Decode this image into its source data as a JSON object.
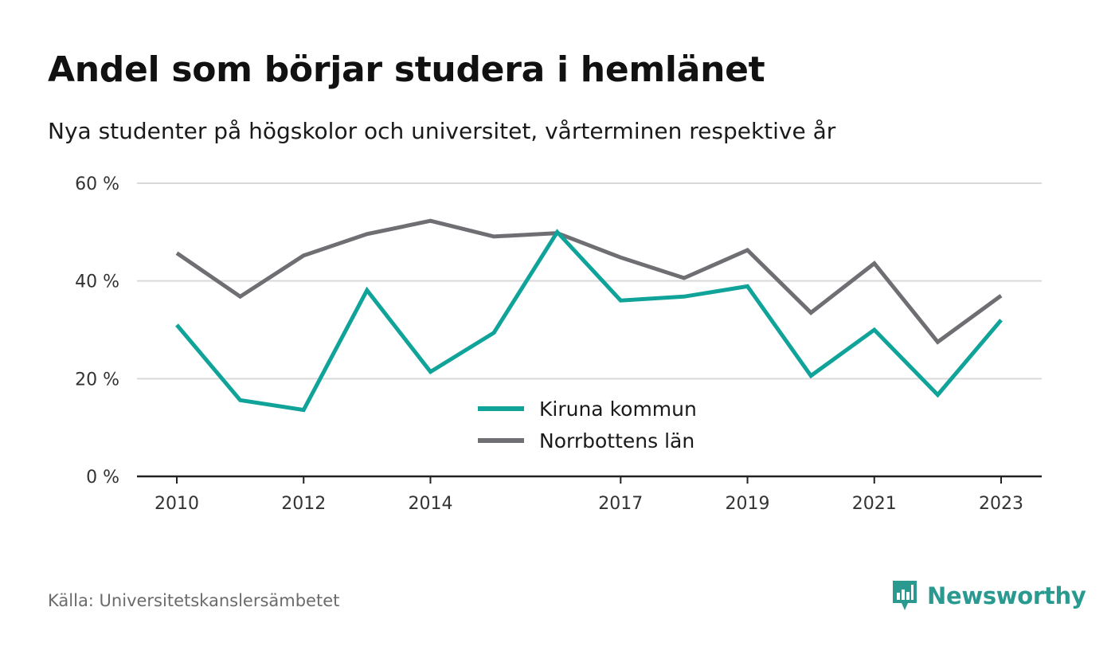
{
  "title": "Andel som börjar studera i hemlänet",
  "subtitle": "Nya studenter på högskolor och universitet, vårterminen respektive år",
  "source": "Källa: Universitetskanslersämbetet",
  "brand": {
    "name": "Newsworthy",
    "icon": "newsworthy-logo-icon",
    "color": "#2a9a90"
  },
  "chart_data": {
    "type": "line",
    "title": "Andel som börjar studera i hemlänet",
    "subtitle": "Nya studenter på högskolor och universitet, vårterminen respektive år",
    "x": [
      2010,
      2011,
      2012,
      2013,
      2014,
      2015,
      2016,
      2017,
      2018,
      2019,
      2020,
      2021,
      2022,
      2023
    ],
    "x_tick_values": [
      2010,
      2012,
      2014,
      2017,
      2019,
      2021,
      2023
    ],
    "x_tick_labels": [
      "2010",
      "2012",
      "2014",
      "2017",
      "2019",
      "2021",
      "2023"
    ],
    "y_tick_values": [
      0,
      20,
      40,
      60
    ],
    "y_tick_labels": [
      "0 %",
      "20 %",
      "40 %",
      "60 %"
    ],
    "ylim": [
      0,
      60
    ],
    "grid": true,
    "legend_position": "center",
    "series": [
      {
        "name": "Kiruna kommun",
        "color": "#0fa39a",
        "values": [
          31.0,
          15.6,
          13.6,
          38.1,
          21.4,
          29.4,
          50.0,
          36.0,
          36.8,
          38.9,
          20.6,
          30.0,
          16.7,
          32.0
        ]
      },
      {
        "name": "Norrbottens län",
        "color": "#6f6e73",
        "values": [
          45.7,
          36.8,
          45.2,
          49.6,
          52.3,
          49.1,
          49.8,
          44.8,
          40.6,
          46.3,
          33.5,
          43.6,
          27.5,
          37.0
        ]
      }
    ]
  }
}
